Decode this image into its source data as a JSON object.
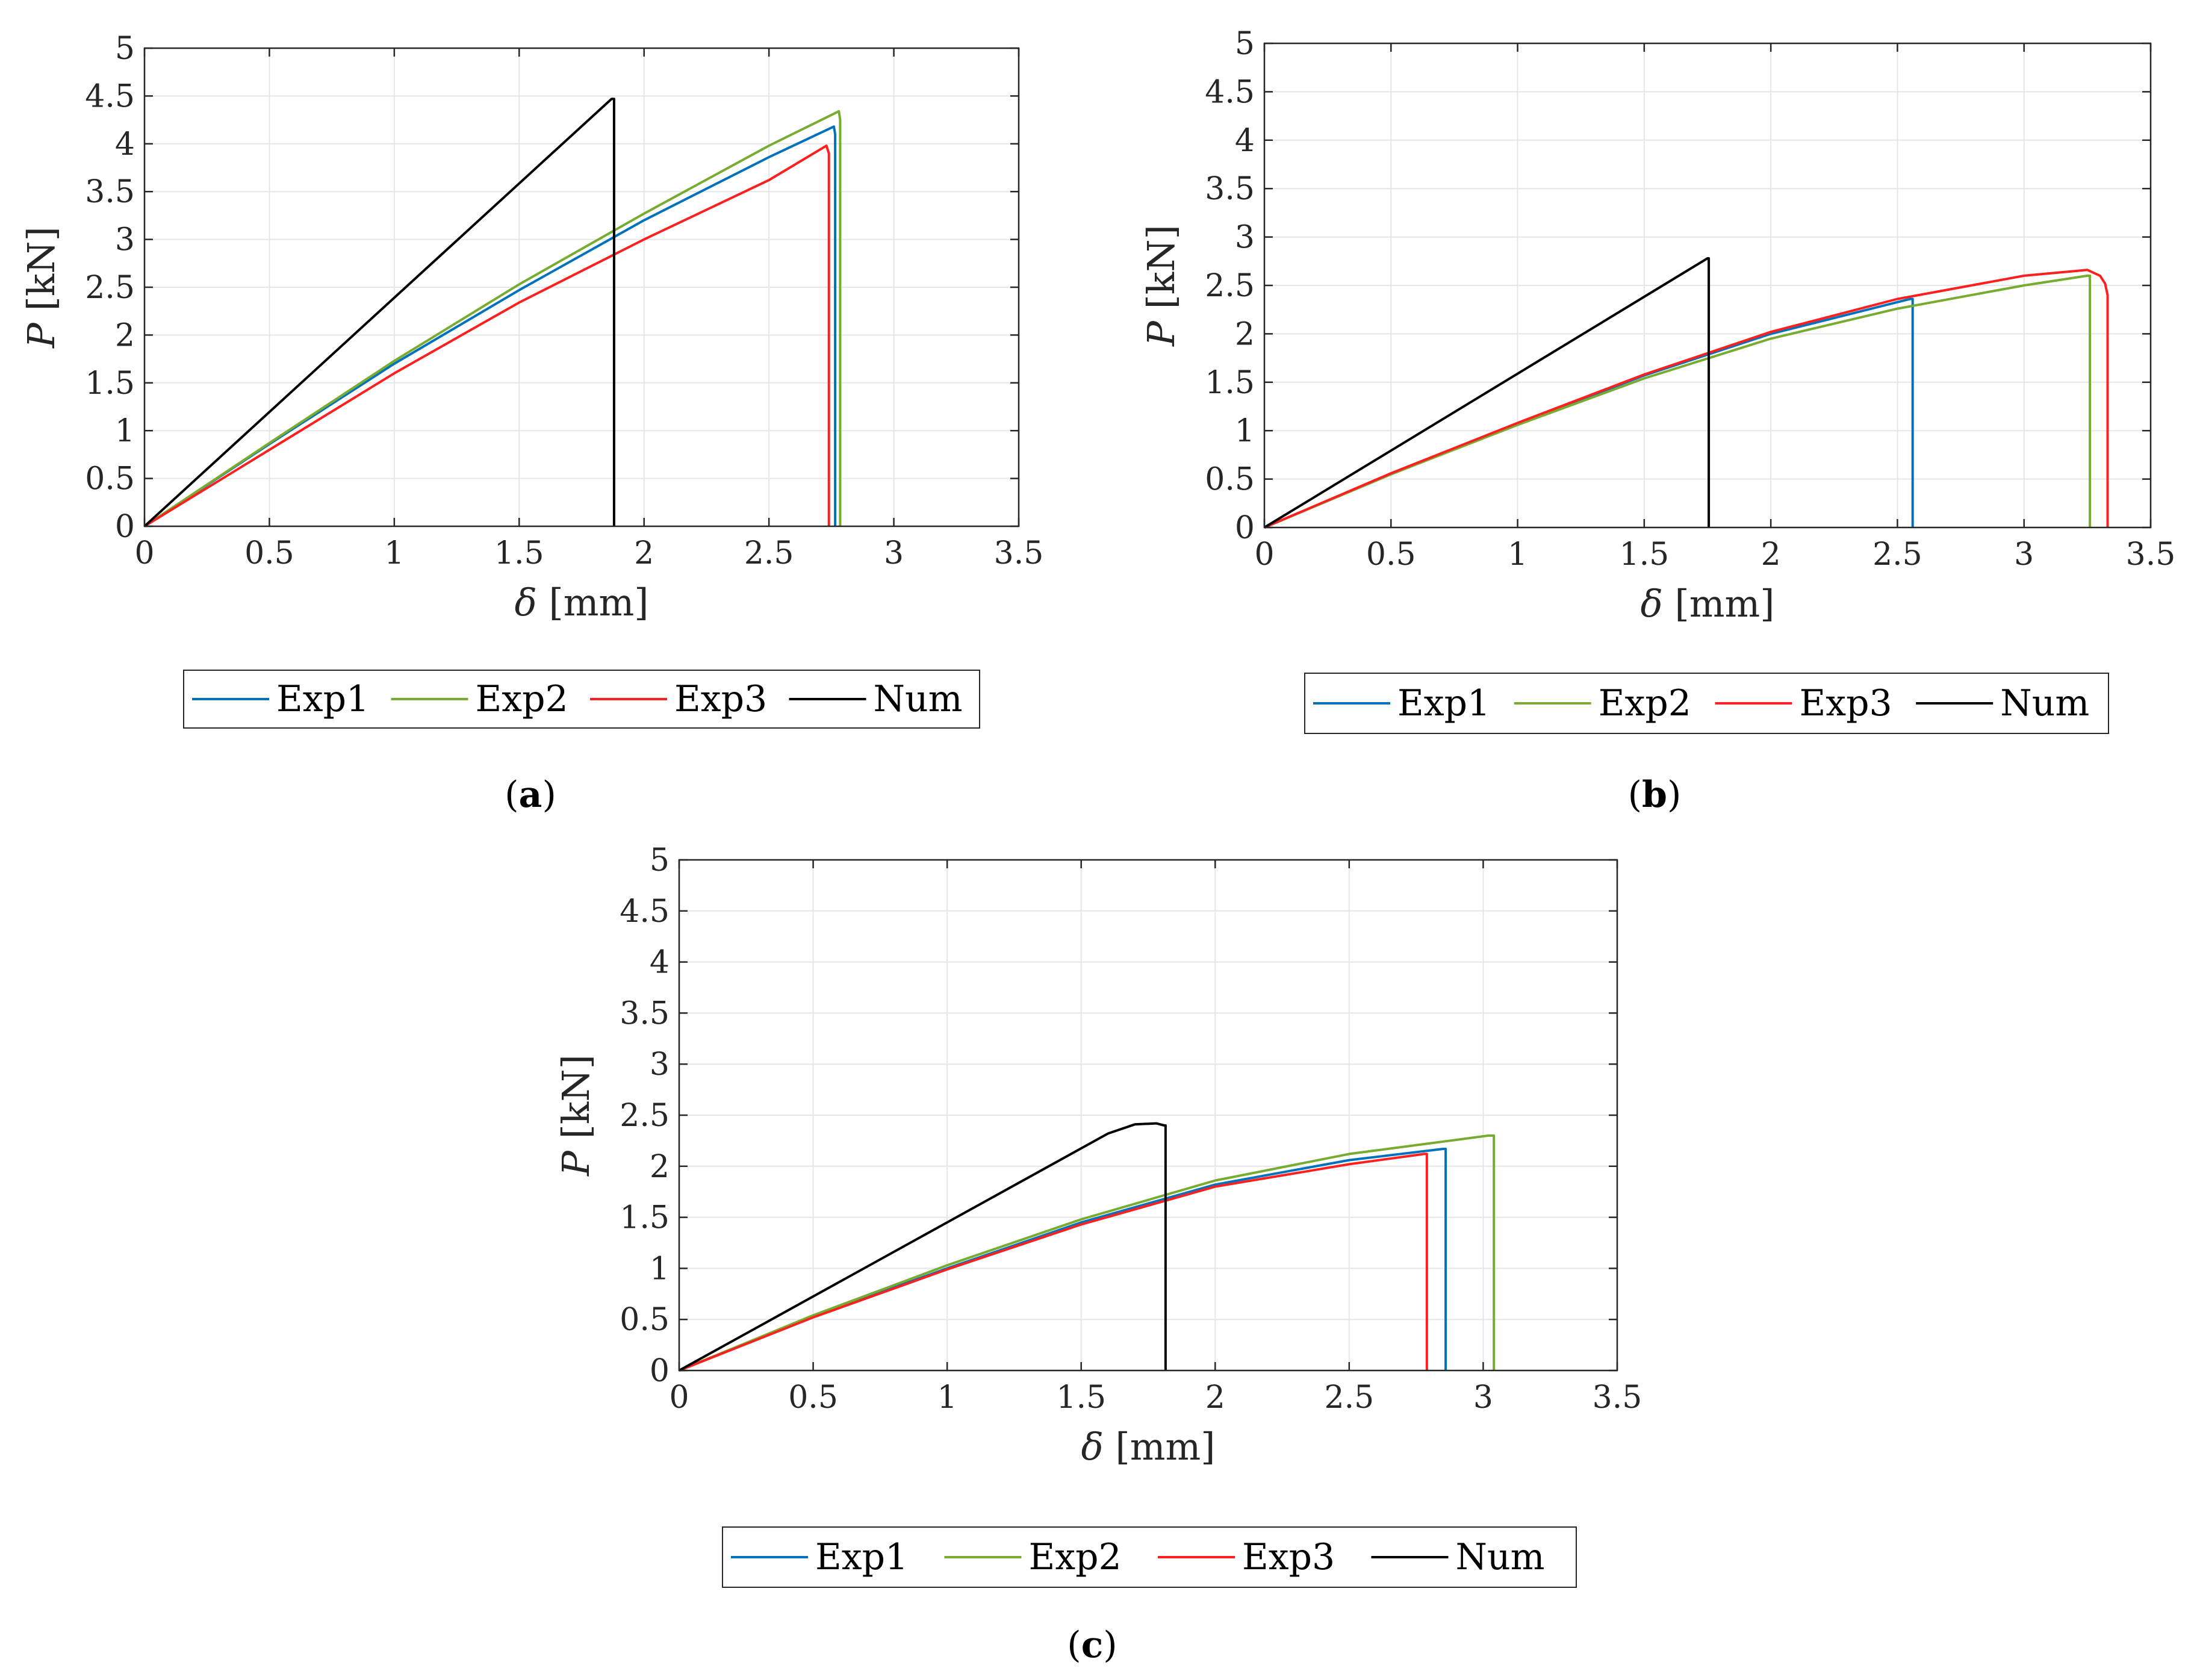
{
  "colors": {
    "exp1": "#0072BD",
    "exp2": "#77AC30",
    "exp3": "#FF1F1F",
    "num": "#000000"
  },
  "chart_data": [
    {
      "id": "a",
      "caption": {
        "open": "(",
        "letter": "a",
        "close": ")"
      },
      "type": "line",
      "xlabel": {
        "symbol": "δ",
        "unit": "[mm]"
      },
      "ylabel": {
        "symbol": "P",
        "unit": "[kN]"
      },
      "xlim": [
        0,
        3.5
      ],
      "ylim": [
        0,
        5
      ],
      "grid": true,
      "xticks": [
        "0",
        "0.5",
        "1",
        "1.5",
        "2",
        "2.5",
        "3",
        "3.5"
      ],
      "yticks": [
        "0",
        "0.5",
        "1",
        "1.5",
        "2",
        "2.5",
        "3",
        "3.5",
        "4",
        "4.5",
        "5"
      ],
      "legend": {
        "placement": "bottom",
        "entries": [
          "Exp1",
          "Exp2",
          "Exp3",
          "Num"
        ]
      },
      "series": [
        {
          "name": "Exp1",
          "color_key": "exp1",
          "x": [
            0,
            0.5,
            1,
            1.5,
            2,
            2.5,
            2.76,
            2.765,
            2.765
          ],
          "y": [
            0,
            0.86,
            1.7,
            2.47,
            3.2,
            3.86,
            4.18,
            4.1,
            0
          ]
        },
        {
          "name": "Exp2",
          "color_key": "exp2",
          "x": [
            0,
            0.5,
            1,
            1.5,
            2,
            2.5,
            2.78,
            2.785,
            2.785
          ],
          "y": [
            0,
            0.87,
            1.73,
            2.53,
            3.27,
            3.98,
            4.34,
            4.25,
            0
          ]
        },
        {
          "name": "Exp3",
          "color_key": "exp3",
          "x": [
            0,
            0.5,
            1,
            1.5,
            2,
            2.5,
            2.73,
            2.74,
            2.74
          ],
          "y": [
            0,
            0.8,
            1.6,
            2.34,
            3.0,
            3.62,
            3.98,
            3.9,
            0
          ]
        },
        {
          "name": "Num",
          "color_key": "num",
          "x": [
            0,
            1.87,
            1.88,
            1.88
          ],
          "y": [
            0,
            4.47,
            4.47,
            0
          ]
        }
      ]
    },
    {
      "id": "b",
      "caption": {
        "open": "(",
        "letter": "b",
        "close": ")"
      },
      "type": "line",
      "xlabel": {
        "symbol": "δ",
        "unit": "[mm]"
      },
      "ylabel": {
        "symbol": "P",
        "unit": "[kN]"
      },
      "xlim": [
        0,
        3.5
      ],
      "ylim": [
        0,
        5
      ],
      "grid": true,
      "xticks": [
        "0",
        "0.5",
        "1",
        "1.5",
        "2",
        "2.5",
        "3",
        "3.5"
      ],
      "yticks": [
        "0",
        "0.5",
        "1",
        "1.5",
        "2",
        "2.5",
        "3",
        "3.5",
        "4",
        "4.5",
        "5"
      ],
      "legend": {
        "placement": "bottom",
        "entries": [
          "Exp1",
          "Exp2",
          "Exp3",
          "Num"
        ]
      },
      "series": [
        {
          "name": "Exp1",
          "color_key": "exp1",
          "x": [
            0,
            0.5,
            1,
            1.5,
            2,
            2.55,
            2.56,
            2.56
          ],
          "y": [
            0,
            0.55,
            1.07,
            1.57,
            2.0,
            2.36,
            2.36,
            0
          ]
        },
        {
          "name": "Exp2",
          "color_key": "exp2",
          "x": [
            0,
            0.5,
            1,
            1.5,
            2,
            2.5,
            3.0,
            3.25,
            3.26,
            3.26
          ],
          "y": [
            0,
            0.55,
            1.06,
            1.54,
            1.95,
            2.26,
            2.5,
            2.6,
            2.6,
            0
          ]
        },
        {
          "name": "Exp3",
          "color_key": "exp3",
          "x": [
            0,
            0.5,
            1,
            1.5,
            2,
            2.5,
            3.0,
            3.25,
            3.3,
            3.32,
            3.33,
            3.33
          ],
          "y": [
            0,
            0.56,
            1.08,
            1.58,
            2.02,
            2.36,
            2.6,
            2.66,
            2.6,
            2.52,
            2.4,
            0
          ]
        },
        {
          "name": "Num",
          "color_key": "num",
          "x": [
            0,
            1.75,
            1.755,
            1.755
          ],
          "y": [
            0,
            2.78,
            2.78,
            0
          ]
        }
      ]
    },
    {
      "id": "c",
      "caption": {
        "open": "(",
        "letter": "c",
        "close": ")"
      },
      "type": "line",
      "xlabel": {
        "symbol": "δ",
        "unit": "[mm]"
      },
      "ylabel": {
        "symbol": "P",
        "unit": "[kN]"
      },
      "xlim": [
        0,
        3.5
      ],
      "ylim": [
        0,
        5
      ],
      "grid": true,
      "xticks": [
        "0",
        "0.5",
        "1",
        "1.5",
        "2",
        "2.5",
        "3",
        "3.5"
      ],
      "yticks": [
        "0",
        "0.5",
        "1",
        "1.5",
        "2",
        "2.5",
        "3",
        "3.5",
        "4",
        "4.5",
        "5"
      ],
      "legend": {
        "placement": "bottom",
        "entries": [
          "Exp1",
          "Exp2",
          "Exp3",
          "Num"
        ]
      },
      "series": [
        {
          "name": "Exp1",
          "color_key": "exp1",
          "x": [
            0,
            0.5,
            1,
            1.5,
            2,
            2.5,
            2.85,
            2.86,
            2.86
          ],
          "y": [
            0,
            0.53,
            1.0,
            1.45,
            1.82,
            2.06,
            2.17,
            2.17,
            0
          ]
        },
        {
          "name": "Exp2",
          "color_key": "exp2",
          "x": [
            0,
            0.5,
            1,
            1.5,
            2,
            2.5,
            3.02,
            3.04,
            3.04
          ],
          "y": [
            0,
            0.54,
            1.03,
            1.48,
            1.86,
            2.12,
            2.3,
            2.3,
            0
          ]
        },
        {
          "name": "Exp3",
          "color_key": "exp3",
          "x": [
            0,
            0.5,
            1,
            1.5,
            2,
            2.5,
            2.78,
            2.79,
            2.79
          ],
          "y": [
            0,
            0.52,
            0.99,
            1.43,
            1.8,
            2.02,
            2.12,
            2.12,
            0
          ]
        },
        {
          "name": "Num",
          "color_key": "num",
          "x": [
            0,
            1.6,
            1.7,
            1.78,
            1.81,
            1.815,
            1.815
          ],
          "y": [
            0,
            2.32,
            2.41,
            2.42,
            2.4,
            2.4,
            0
          ]
        }
      ]
    }
  ]
}
